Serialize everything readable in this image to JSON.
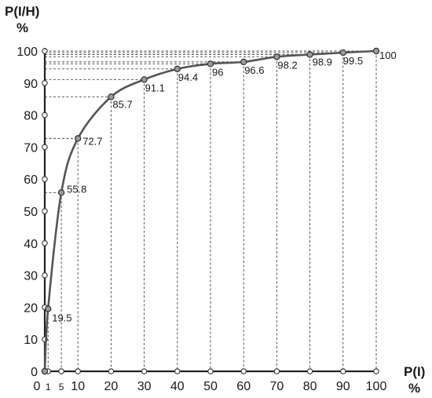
{
  "chart_data": {
    "type": "line",
    "title": "",
    "ylabel": "P(I/H)",
    "ylabel_unit": "%",
    "xlabel": "P(I)",
    "xlabel_unit": "%",
    "xlim": [
      0,
      100
    ],
    "ylim": [
      0,
      100
    ],
    "y_ticks": [
      "0",
      "10",
      "20",
      "30",
      "40",
      "50",
      "60",
      "70",
      "80",
      "90",
      "100"
    ],
    "x_ticks": [
      "0",
      "1",
      "5",
      "10",
      "20",
      "30",
      "40",
      "50",
      "60",
      "70",
      "80",
      "90",
      "100"
    ],
    "x_tick_values": [
      0,
      1,
      5,
      10,
      20,
      30,
      40,
      50,
      60,
      70,
      80,
      90,
      100
    ],
    "y_tick_values": [
      0,
      10,
      20,
      30,
      40,
      50,
      60,
      70,
      80,
      90,
      100
    ],
    "grid": "dashed drop lines from each point to both axes",
    "series": [
      {
        "x": [
          0,
          1,
          5,
          10,
          20,
          30,
          40,
          50,
          60,
          70,
          80,
          90,
          100
        ],
        "y": [
          0,
          19.5,
          55.8,
          72.7,
          85.7,
          91.1,
          94.4,
          96,
          96.6,
          98.2,
          98.9,
          99.5,
          100
        ],
        "labels": [
          "",
          "19.5",
          "55.8",
          "72.7",
          "85.7",
          "91.1",
          "94.4",
          "96",
          "96.6",
          "98.2",
          "98.9",
          "99.5",
          "100"
        ]
      }
    ],
    "colors": {
      "line": "#555555",
      "marker_fill": "#9a9a9a",
      "axis": "#222222"
    }
  }
}
